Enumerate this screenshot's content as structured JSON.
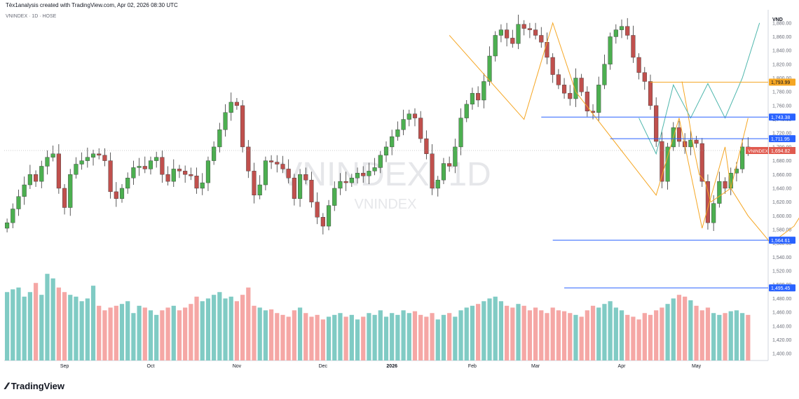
{
  "header": {
    "created_by": "Tèx1analysis created with TradingView.com, Apr 02, 2026 08:30 UTC",
    "symbol": "VNINDEX · 1D · HOSE"
  },
  "watermark": {
    "main": "VNINDEX, 1D",
    "sub": "VNINDEX"
  },
  "footer": {
    "brand": "TradingView"
  },
  "colors": {
    "up": "#26a69a",
    "down": "#ef5350",
    "up_candle": "#4caf50",
    "down_candle": "#c0504d",
    "vol_up": "#80cbc4",
    "vol_down": "#f5a7a5",
    "orange": "#f5a623",
    "teal": "#4db6ac",
    "blue": "#2962ff",
    "price_tag": "#e05a4f"
  },
  "chart_data": {
    "type": "candlestick",
    "unit_label": "VND",
    "ylim": [
      1390,
      1895
    ],
    "y_ticks": [
      1400,
      1420,
      1440,
      1460,
      1480,
      1500,
      1520,
      1540,
      1560,
      1580,
      1600,
      1620,
      1640,
      1660,
      1680,
      1700,
      1720,
      1740,
      1760,
      1780,
      1800,
      1820,
      1840,
      1860,
      1880
    ],
    "x_labels": [
      {
        "label": "Sep",
        "index": 10
      },
      {
        "label": "Oct",
        "index": 25
      },
      {
        "label": "Nov",
        "index": 40
      },
      {
        "label": "Dec",
        "index": 55
      },
      {
        "label": "2026",
        "index": 67,
        "bold": true
      },
      {
        "label": "Feb",
        "index": 81
      },
      {
        "label": "Mar",
        "index": 92
      },
      {
        "label": "Apr",
        "index": 107
      },
      {
        "label": "May",
        "index": 120
      }
    ],
    "closes": [
      1590,
      1610,
      1628,
      1645,
      1660,
      1650,
      1672,
      1685,
      1690,
      1640,
      1612,
      1660,
      1675,
      1680,
      1685,
      1690,
      1688,
      1680,
      1635,
      1625,
      1640,
      1655,
      1670,
      1672,
      1668,
      1680,
      1685,
      1660,
      1650,
      1668,
      1665,
      1660,
      1658,
      1640,
      1648,
      1680,
      1700,
      1725,
      1750,
      1765,
      1760,
      1700,
      1665,
      1630,
      1645,
      1680,
      1678,
      1675,
      1668,
      1655,
      1625,
      1660,
      1652,
      1620,
      1598,
      1585,
      1615,
      1640,
      1650,
      1648,
      1655,
      1662,
      1658,
      1665,
      1670,
      1688,
      1700,
      1715,
      1725,
      1740,
      1748,
      1742,
      1712,
      1690,
      1640,
      1652,
      1676,
      1672,
      1700,
      1742,
      1762,
      1778,
      1768,
      1795,
      1832,
      1862,
      1870,
      1858,
      1850,
      1878,
      1872,
      1870,
      1862,
      1852,
      1830,
      1805,
      1790,
      1778,
      1770,
      1800,
      1780,
      1752,
      1750,
      1790,
      1820,
      1860,
      1870,
      1875,
      1862,
      1830,
      1808,
      1795,
      1760,
      1708,
      1650,
      1700,
      1728,
      1708,
      1700,
      1710,
      1705,
      1650,
      1590,
      1618,
      1650,
      1640,
      1662,
      1668,
      1700,
      1695
    ],
    "highs_offsets": "derived",
    "volumes": [
      75,
      78,
      80,
      70,
      75,
      85,
      72,
      95,
      90,
      80,
      75,
      72,
      70,
      65,
      68,
      82,
      60,
      55,
      58,
      60,
      62,
      65,
      52,
      60,
      58,
      55,
      50,
      55,
      58,
      60,
      55,
      58,
      62,
      70,
      65,
      68,
      72,
      75,
      68,
      70,
      65,
      72,
      80,
      60,
      58,
      55,
      56,
      52,
      50,
      48,
      55,
      58,
      52,
      48,
      50,
      45,
      48,
      50,
      52,
      48,
      50,
      45,
      48,
      52,
      50,
      55,
      48,
      52,
      50,
      55,
      52,
      54,
      50,
      48,
      52,
      45,
      50,
      52,
      48,
      55,
      58,
      60,
      62,
      65,
      68,
      70,
      65,
      60,
      58,
      62,
      60,
      55,
      58,
      55,
      52,
      58,
      55,
      54,
      52,
      50,
      48,
      55,
      60,
      58,
      62,
      65,
      58,
      55,
      50,
      48,
      45,
      52,
      50,
      55,
      58,
      62,
      68,
      72,
      70,
      66,
      60,
      55,
      58,
      52,
      50,
      52,
      54,
      55,
      52,
      50
    ],
    "overlays": {
      "orange_path": [
        [
          117.5,
          1795
        ],
        [
          118.5,
          1750
        ],
        [
          119.5,
          1700
        ],
        [
          120.5,
          1660
        ],
        [
          121.5,
          1650
        ],
        [
          122.5,
          1620
        ],
        [
          126,
          1640
        ],
        [
          129,
          1600
        ],
        [
          133,
          1560
        ],
        [
          137,
          1585
        ],
        [
          140,
          1625
        ]
      ],
      "teal_path": [
        [
          110,
          1742
        ],
        [
          113,
          1690
        ],
        [
          116,
          1790
        ],
        [
          119,
          1742
        ],
        [
          122,
          1792
        ],
        [
          125,
          1742
        ],
        [
          128,
          1800
        ],
        [
          131,
          1880
        ]
      ],
      "levels": [
        {
          "value": 1793.99,
          "label": "1,793.99",
          "color": "orange",
          "from": 112
        },
        {
          "value": 1743.38,
          "label": "1,743.38",
          "color": "blue",
          "from": 93
        },
        {
          "value": 1711.95,
          "label": "1,711.95",
          "color": "blue",
          "from": 105
        },
        {
          "value": 1564.61,
          "label": "1,564.61",
          "color": "blue",
          "from": 95
        },
        {
          "value": 1495.45,
          "label": "1,495.45",
          "color": "blue",
          "from": 97
        }
      ],
      "last_price": {
        "value": 1694.82,
        "label": "1,694.82",
        "name": "VNINDEX"
      }
    }
  }
}
